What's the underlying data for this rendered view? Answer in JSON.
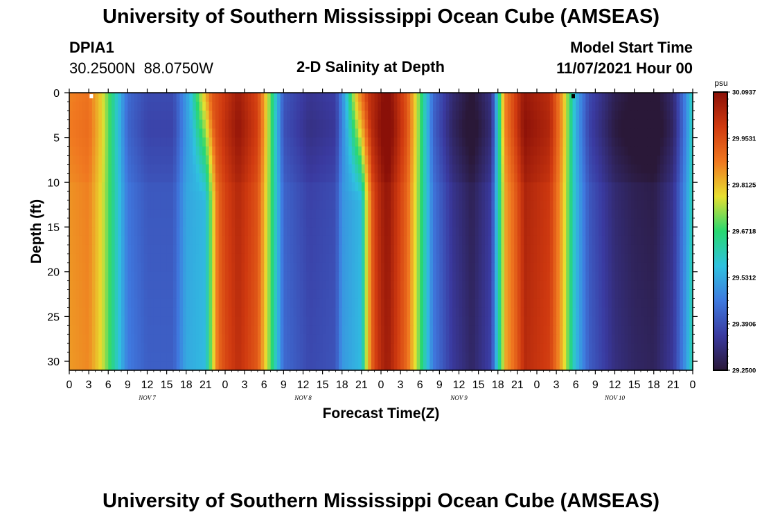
{
  "header": {
    "title": "University of Southern Mississippi Ocean Cube (AMSEAS)",
    "station_id": "DPIA1",
    "coords": "30.2500N  88.0750W",
    "subtitle": "2-D Salinity at Depth",
    "model_start_label": "Model Start Time",
    "model_start_value": "11/07/2021 Hour 00"
  },
  "footer": {
    "title": "University of Southern Mississippi Ocean Cube (AMSEAS)"
  },
  "chart_data": {
    "type": "heatmap",
    "title": "2-D Salinity at Depth",
    "xlabel": "Forecast Time(Z)",
    "ylabel": "Depth (ft)",
    "x_ticks": [
      "0",
      "3",
      "6",
      "9",
      "12",
      "15",
      "18",
      "21",
      "0",
      "3",
      "6",
      "9",
      "12",
      "15",
      "18",
      "21",
      "0",
      "3",
      "6",
      "9",
      "12",
      "15",
      "18",
      "21",
      "0",
      "3",
      "6",
      "9",
      "12",
      "15",
      "18",
      "21",
      "0"
    ],
    "x_range_hours": [
      0,
      96
    ],
    "day_labels": [
      {
        "label": "NOV 7",
        "hour": 12
      },
      {
        "label": "NOV 8",
        "hour": 36
      },
      {
        "label": "NOV 9",
        "hour": 60
      },
      {
        "label": "NOV 10",
        "hour": 84
      }
    ],
    "y_ticks": [
      "0",
      "5",
      "10",
      "15",
      "20",
      "25",
      "30"
    ],
    "y_range_ft": [
      0,
      31
    ],
    "colorbar": {
      "unit": "psu",
      "labels": [
        "30.0937",
        "29.9531",
        "29.8125",
        "29.6718",
        "29.5312",
        "29.3906",
        "29.2500"
      ],
      "min": 29.25,
      "max": 30.0937,
      "colors": [
        "#2a1838",
        "#3a3aa0",
        "#3f7ae0",
        "#2fc2e0",
        "#28d870",
        "#e8e030",
        "#f07820",
        "#d03a10",
        "#8a1008"
      ]
    },
    "salinity_profile_surface": [
      {
        "hour": 0,
        "value": 29.86
      },
      {
        "hour": 3,
        "value": 29.88
      },
      {
        "hour": 5,
        "value": 29.78
      },
      {
        "hour": 7,
        "value": 29.62
      },
      {
        "hour": 9,
        "value": 29.45
      },
      {
        "hour": 12,
        "value": 29.4
      },
      {
        "hour": 16,
        "value": 29.4
      },
      {
        "hour": 18.5,
        "value": 29.55
      },
      {
        "hour": 20,
        "value": 29.72
      },
      {
        "hour": 22,
        "value": 29.92
      },
      {
        "hour": 26,
        "value": 30.04
      },
      {
        "hour": 29,
        "value": 29.95
      },
      {
        "hour": 31,
        "value": 29.7
      },
      {
        "hour": 33,
        "value": 29.42
      },
      {
        "hour": 37,
        "value": 29.36
      },
      {
        "hour": 41,
        "value": 29.38
      },
      {
        "hour": 42.5,
        "value": 29.55
      },
      {
        "hour": 44,
        "value": 29.78
      },
      {
        "hour": 46,
        "value": 29.98
      },
      {
        "hour": 49,
        "value": 30.09
      },
      {
        "hour": 52,
        "value": 29.92
      },
      {
        "hour": 54,
        "value": 29.7
      },
      {
        "hour": 56,
        "value": 29.45
      },
      {
        "hour": 59,
        "value": 29.33
      },
      {
        "hour": 62,
        "value": 29.27
      },
      {
        "hour": 65,
        "value": 29.35
      },
      {
        "hour": 67,
        "value": 29.85
      },
      {
        "hour": 70,
        "value": 30.05
      },
      {
        "hour": 74,
        "value": 30.0
      },
      {
        "hour": 76,
        "value": 29.82
      },
      {
        "hour": 78,
        "value": 29.55
      },
      {
        "hour": 80,
        "value": 29.4
      },
      {
        "hour": 84,
        "value": 29.3
      },
      {
        "hour": 87,
        "value": 29.27
      },
      {
        "hour": 90,
        "value": 29.26
      },
      {
        "hour": 93,
        "value": 29.33
      },
      {
        "hour": 95,
        "value": 29.5
      },
      {
        "hour": 96,
        "value": 29.62
      }
    ],
    "front_shift_hours_per_depth": [
      {
        "start_hour": 18,
        "end_hour": 24,
        "max_shift_hours": 2.5
      },
      {
        "start_hour": 42,
        "end_hour": 48,
        "max_shift_hours": 2.5
      },
      {
        "start_hour": 66,
        "end_hour": 71,
        "max_shift_hours": 0.5
      }
    ],
    "surface_markers": [
      {
        "hour": 3.4,
        "depth": 0.2,
        "color": "#ffffff"
      },
      {
        "hour": 77.6,
        "depth": 0.2,
        "color": "#000000"
      }
    ]
  }
}
